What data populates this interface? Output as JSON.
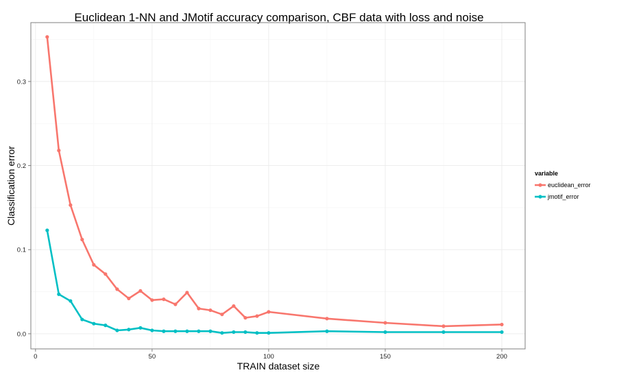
{
  "chart_data": {
    "type": "line",
    "title": "Euclidean 1-NN and JMotif accuracy comparison, CBF data with loss and noise",
    "xlabel": "TRAIN dataset size",
    "ylabel": "Classification error",
    "xlim": [
      -2,
      210
    ],
    "ylim": [
      -0.018,
      0.37
    ],
    "x_ticks": [
      0,
      50,
      100,
      150,
      200
    ],
    "y_ticks": [
      0.0,
      0.1,
      0.2,
      0.3
    ],
    "x_tick_labels": [
      "0",
      "50",
      "100",
      "150",
      "200"
    ],
    "y_tick_labels": [
      "0.0",
      "0.1",
      "0.2",
      "0.3"
    ],
    "grid": true,
    "legend": {
      "title": "variable",
      "position": "right"
    },
    "x": [
      5,
      10,
      15,
      20,
      25,
      30,
      35,
      40,
      45,
      50,
      55,
      60,
      65,
      70,
      75,
      80,
      85,
      90,
      95,
      100,
      125,
      150,
      175,
      200
    ],
    "series": [
      {
        "name": "euclidean_error",
        "color": "#F8766D",
        "values": [
          0.353,
          0.218,
          0.153,
          0.112,
          0.082,
          0.071,
          0.053,
          0.042,
          0.051,
          0.04,
          0.041,
          0.035,
          0.049,
          0.03,
          0.028,
          0.023,
          0.033,
          0.019,
          0.021,
          0.026,
          0.018,
          0.013,
          0.009,
          0.011
        ]
      },
      {
        "name": "jmotif_error",
        "color": "#00BFC4",
        "values": [
          0.123,
          0.047,
          0.039,
          0.017,
          0.012,
          0.01,
          0.004,
          0.005,
          0.007,
          0.004,
          0.003,
          0.003,
          0.003,
          0.003,
          0.003,
          0.001,
          0.002,
          0.002,
          0.001,
          0.001,
          0.003,
          0.002,
          0.002,
          0.002
        ]
      }
    ]
  }
}
